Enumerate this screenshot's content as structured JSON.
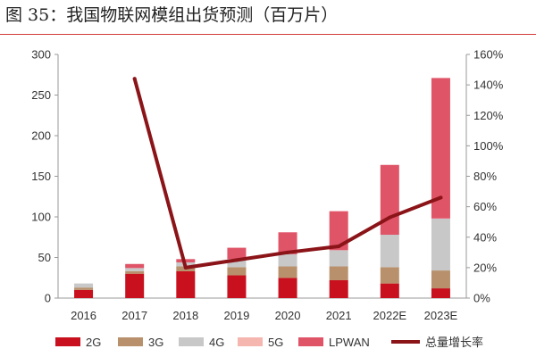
{
  "title": "图 35：我国物联网模组出货预测（百万片）",
  "chart_data": {
    "type": "bar",
    "stacked": true,
    "categories": [
      "2016",
      "2017",
      "2018",
      "2019",
      "2020",
      "2021",
      "2022E",
      "2023E"
    ],
    "series": [
      {
        "name": "2G",
        "color": "#c8101e",
        "values": [
          10,
          30,
          33,
          28,
          25,
          22,
          18,
          12
        ]
      },
      {
        "name": "3G",
        "color": "#b8916c",
        "values": [
          3,
          3,
          6,
          10,
          14,
          17,
          20,
          22
        ]
      },
      {
        "name": "4G",
        "color": "#c8c8c8",
        "values": [
          5,
          4,
          5,
          10,
          15,
          20,
          40,
          64
        ]
      },
      {
        "name": "5G",
        "color": "#f4b6ae",
        "values": [
          0,
          0,
          0,
          0,
          0,
          0,
          0,
          0
        ]
      },
      {
        "name": "LPWAN",
        "color": "#e05468",
        "values": [
          0,
          5,
          4,
          14,
          27,
          48,
          86,
          173
        ]
      }
    ],
    "line_series": {
      "name": "总量增长率",
      "color": "#8b1418",
      "axis": "right",
      "values": [
        null,
        1.44,
        0.2,
        0.25,
        0.3,
        0.34,
        0.53,
        0.66
      ]
    },
    "y_left": {
      "min": 0,
      "max": 300,
      "ticks": [
        "0",
        "50",
        "100",
        "150",
        "200",
        "250",
        "300"
      ]
    },
    "y_right": {
      "min": 0,
      "max": 1.6,
      "ticks": [
        "0%",
        "20%",
        "40%",
        "60%",
        "80%",
        "100%",
        "120%",
        "140%",
        "160%"
      ]
    },
    "grid": false,
    "legend_position": "bottom"
  }
}
